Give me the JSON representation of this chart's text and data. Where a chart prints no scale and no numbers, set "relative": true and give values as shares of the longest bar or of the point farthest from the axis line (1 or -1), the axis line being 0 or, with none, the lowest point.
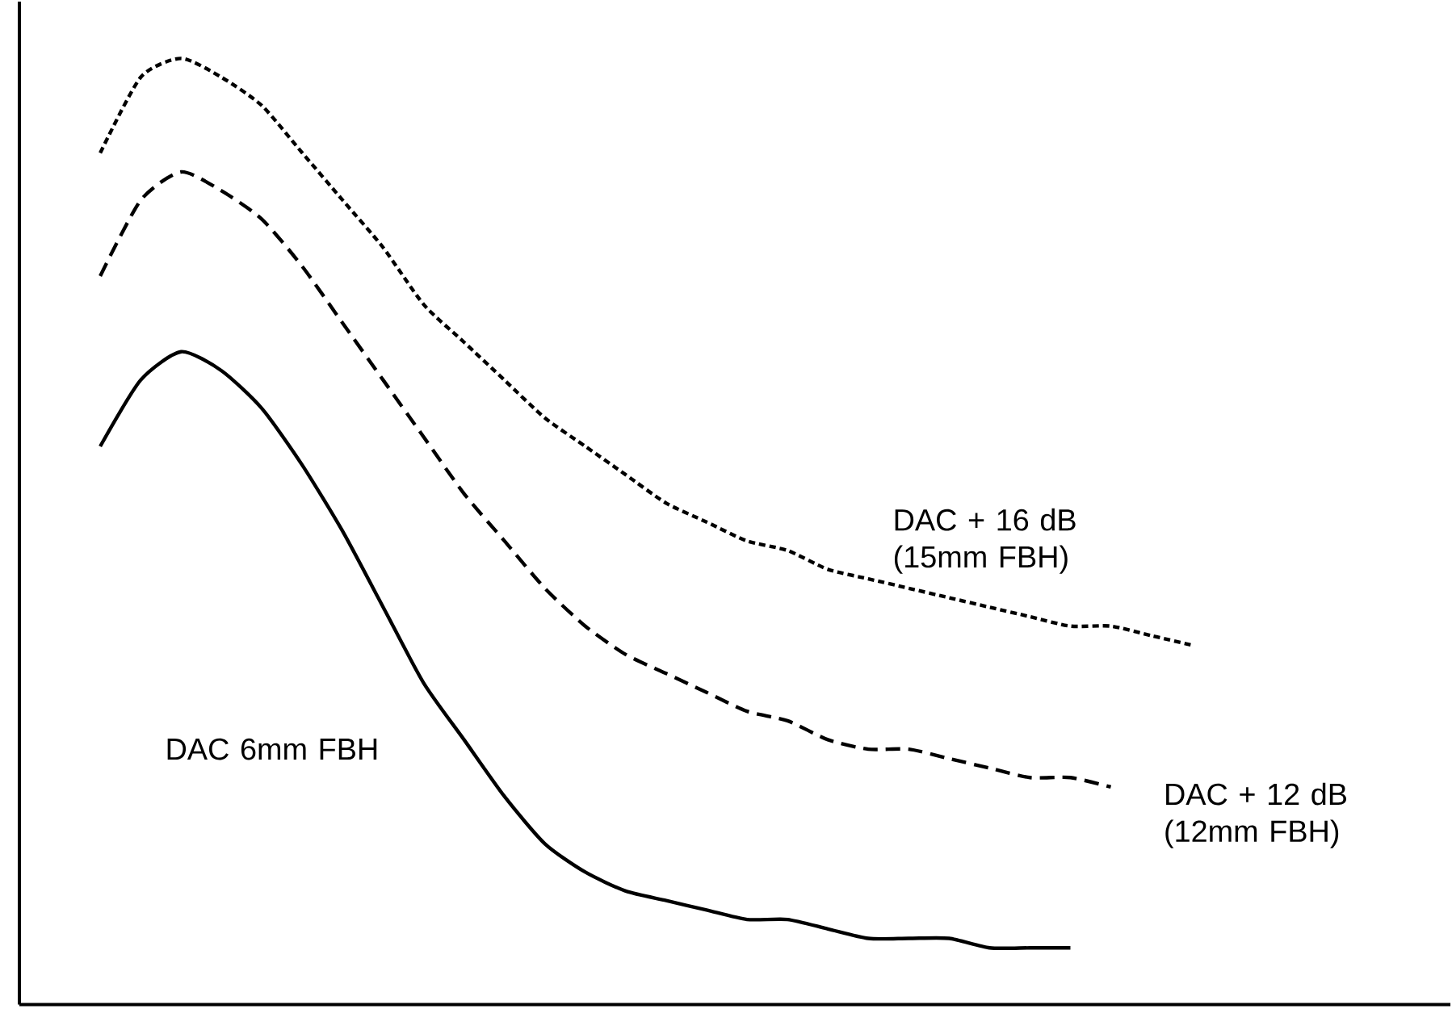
{
  "chart_data": {
    "type": "line",
    "relative": true,
    "legend": false,
    "marker": "none",
    "categories": [
      null,
      null,
      null,
      null,
      null,
      null,
      null,
      null,
      null,
      null,
      null,
      null,
      null,
      null,
      null,
      null,
      null,
      null,
      null,
      null,
      null,
      null,
      null,
      null,
      null,
      null,
      null,
      null
    ],
    "series": [
      {
        "name": "DAC + 16 dB (15mm FBH)",
        "color": "#000000",
        "line_style": "dotted",
        "values": [
          0.9,
          0.98,
          1.0,
          0.98,
          0.95,
          0.9,
          0.85,
          0.8,
          0.74,
          0.7,
          0.66,
          0.62,
          0.59,
          0.56,
          0.53,
          0.51,
          0.49,
          0.48,
          0.46,
          0.45,
          0.44,
          0.43,
          0.42,
          0.41,
          0.4,
          0.4,
          0.39,
          0.38
        ]
      },
      {
        "name": "DAC + 12 dB (12mm FBH)",
        "color": "#000000",
        "line_style": "dashed",
        "values": [
          0.77,
          0.85,
          0.88,
          0.86,
          0.83,
          0.78,
          0.72,
          0.66,
          0.6,
          0.54,
          0.49,
          0.44,
          0.4,
          0.37,
          0.35,
          0.33,
          0.31,
          0.3,
          0.28,
          0.27,
          0.27,
          0.26,
          0.25,
          0.24,
          0.24,
          0.23,
          null,
          null
        ]
      },
      {
        "name": "DAC 6mm FBH",
        "color": "#000000",
        "line_style": "solid",
        "values": [
          0.59,
          0.66,
          0.69,
          0.67,
          0.63,
          0.57,
          0.5,
          0.42,
          0.34,
          0.28,
          0.22,
          0.17,
          0.14,
          0.12,
          0.11,
          0.1,
          0.09,
          0.09,
          0.08,
          0.07,
          0.07,
          0.07,
          0.06,
          0.06,
          0.06,
          null,
          null,
          null
        ]
      }
    ]
  }
}
